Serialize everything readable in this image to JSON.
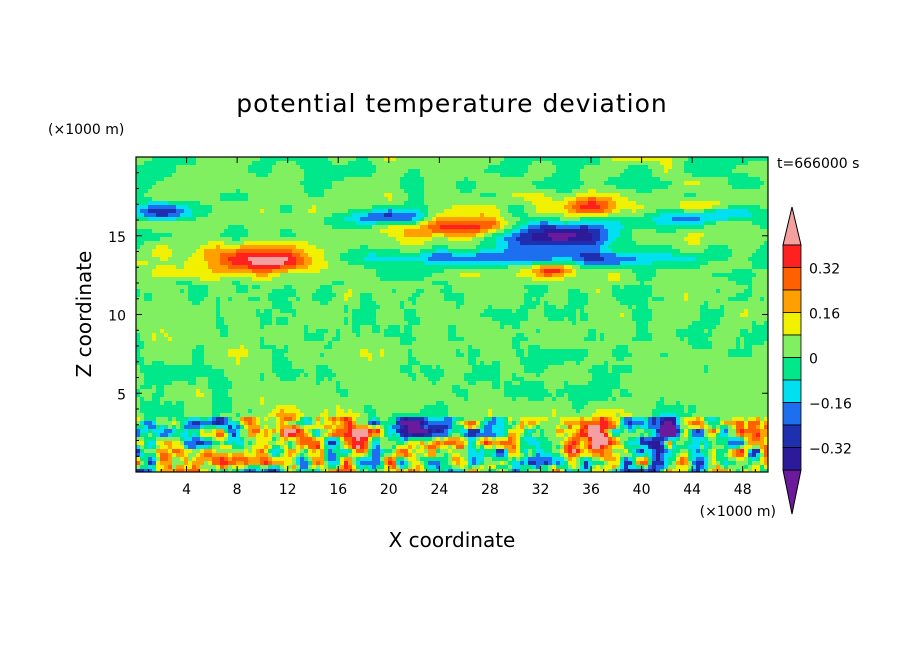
{
  "chart_data": {
    "type": "heatmap",
    "title": "potential temperature deviation",
    "xlabel": "X coordinate",
    "ylabel": "Z coordinate",
    "x_unit": "(×1000 m)",
    "y_unit": "(×1000 m)",
    "time_label": "t=666000 s",
    "xlim": [
      0,
      50
    ],
    "ylim": [
      0,
      20
    ],
    "x_ticks": [
      4,
      8,
      12,
      16,
      20,
      24,
      28,
      32,
      36,
      40,
      44,
      48
    ],
    "y_ticks": [
      5,
      10,
      15
    ],
    "colorbar": {
      "levels": [
        -0.48,
        -0.4,
        -0.32,
        -0.24,
        -0.16,
        -0.08,
        0,
        0.08,
        0.16,
        0.24,
        0.32,
        0.4
      ],
      "tick_labels": [
        "0.32",
        "0.16",
        "0",
        "−0.16",
        "−0.32"
      ],
      "tick_values": [
        0.32,
        0.16,
        0,
        -0.16,
        -0.32
      ],
      "colors": [
        "#6a1a9a",
        "#2c1a9a",
        "#1e2fb0",
        "#1e6ff0",
        "#00e0f0",
        "#00e88a",
        "#80f060",
        "#f0f000",
        "#ffa000",
        "#ff6000",
        "#ff2020",
        "#f5a0a0"
      ]
    },
    "features": [
      {
        "x": 10,
        "z": 13.5,
        "value": 0.42,
        "sx": 5,
        "sz": 0.9
      },
      {
        "x": 26,
        "z": 15.5,
        "value": 0.38,
        "sx": 4.5,
        "sz": 0.7
      },
      {
        "x": 36,
        "z": 16.8,
        "value": 0.36,
        "sx": 2.6,
        "sz": 0.6
      },
      {
        "x": 45,
        "z": 16.8,
        "value": 0.26,
        "sx": 2.5,
        "sz": 0.5
      },
      {
        "x": 33,
        "z": 15,
        "value": -0.48,
        "sx": 4.5,
        "sz": 0.8
      },
      {
        "x": 30,
        "z": 13.6,
        "value": -0.24,
        "sx": 14,
        "sz": 0.5
      },
      {
        "x": 2,
        "z": 16.5,
        "value": -0.3,
        "sx": 2.5,
        "sz": 0.6
      },
      {
        "x": 20,
        "z": 16.2,
        "value": -0.32,
        "sx": 3,
        "sz": 0.5
      },
      {
        "x": 45,
        "z": 16.4,
        "value": -0.28,
        "sx": 4,
        "sz": 0.6
      },
      {
        "x": 33,
        "z": 12.8,
        "value": 0.3,
        "sx": 1.5,
        "sz": 0.4
      },
      {
        "x": 12,
        "z": 3,
        "value": 0.3,
        "sx": 1.5,
        "sz": 1
      },
      {
        "x": 17.5,
        "z": 2.2,
        "value": 0.3,
        "sx": 1.2,
        "sz": 1.3
      },
      {
        "x": 22,
        "z": 2.6,
        "value": -0.4,
        "sx": 1.5,
        "sz": 0.8
      },
      {
        "x": 36.5,
        "z": 2,
        "value": 0.3,
        "sx": 1.5,
        "sz": 1.3
      },
      {
        "x": 42,
        "z": 2.6,
        "value": -0.4,
        "sx": 1.3,
        "sz": 0.9
      }
    ]
  }
}
